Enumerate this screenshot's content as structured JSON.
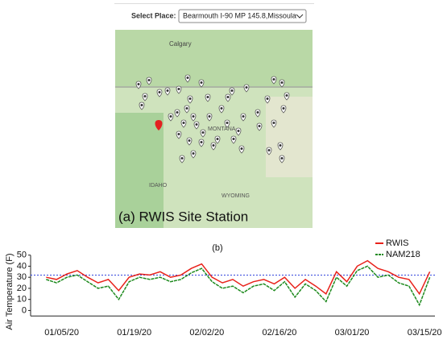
{
  "header": {
    "select_label": "Select Place:",
    "select_value": "Bearmouth I-90 MP 145.8,Missoula"
  },
  "map": {
    "labels": [
      "Calgary",
      "MONTANA",
      "IDAHO",
      "WYOMING"
    ],
    "caption": "(a) RWIS Site Station"
  },
  "chart_caption": "(b)",
  "chart_data": {
    "type": "line",
    "ylabel": "Air Temperature (F)",
    "x": [
      "01/02/20",
      "01/04/20",
      "01/06/20",
      "01/08/20",
      "01/10/20",
      "01/12/20",
      "01/14/20",
      "01/16/20",
      "01/18/20",
      "01/20/20",
      "01/22/20",
      "01/24/20",
      "01/26/20",
      "01/28/20",
      "01/30/20",
      "02/01/20",
      "02/03/20",
      "02/05/20",
      "02/07/20",
      "02/09/20",
      "02/11/20",
      "02/13/20",
      "02/15/20",
      "02/17/20",
      "02/19/20",
      "02/21/20",
      "02/23/20",
      "02/25/20",
      "02/27/20",
      "02/29/20",
      "03/02/20",
      "03/04/20",
      "03/06/20",
      "03/08/20",
      "03/10/20",
      "03/12/20",
      "03/14/20",
      "03/16/20"
    ],
    "series": [
      {
        "name": "RWIS",
        "color": "#e8221b",
        "values": [
          30,
          28,
          33,
          36,
          30,
          25,
          28,
          18,
          30,
          33,
          32,
          35,
          30,
          32,
          38,
          42,
          30,
          25,
          28,
          22,
          26,
          28,
          24,
          30,
          20,
          28,
          22,
          15,
          35,
          26,
          40,
          45,
          38,
          35,
          30,
          28,
          15,
          35
        ]
      },
      {
        "name": "NAM218",
        "color": "#1e8a1e",
        "values": [
          28,
          25,
          30,
          32,
          26,
          20,
          22,
          10,
          26,
          30,
          28,
          30,
          26,
          28,
          34,
          38,
          26,
          20,
          22,
          16,
          22,
          24,
          18,
          26,
          12,
          24,
          18,
          8,
          30,
          22,
          36,
          40,
          30,
          32,
          25,
          22,
          5,
          30
        ]
      }
    ],
    "hline": {
      "value": 32,
      "color": "#3344dd"
    },
    "xlim": [
      "12/30/19",
      "03/17/20"
    ],
    "xticks": [
      "01/05/20",
      "01/19/20",
      "02/02/20",
      "02/16/20",
      "03/01/20",
      "03/15/20"
    ],
    "ylim": [
      -5,
      50
    ],
    "yticks": [
      0,
      10,
      20,
      30,
      40,
      50
    ],
    "legend": "upper right"
  }
}
